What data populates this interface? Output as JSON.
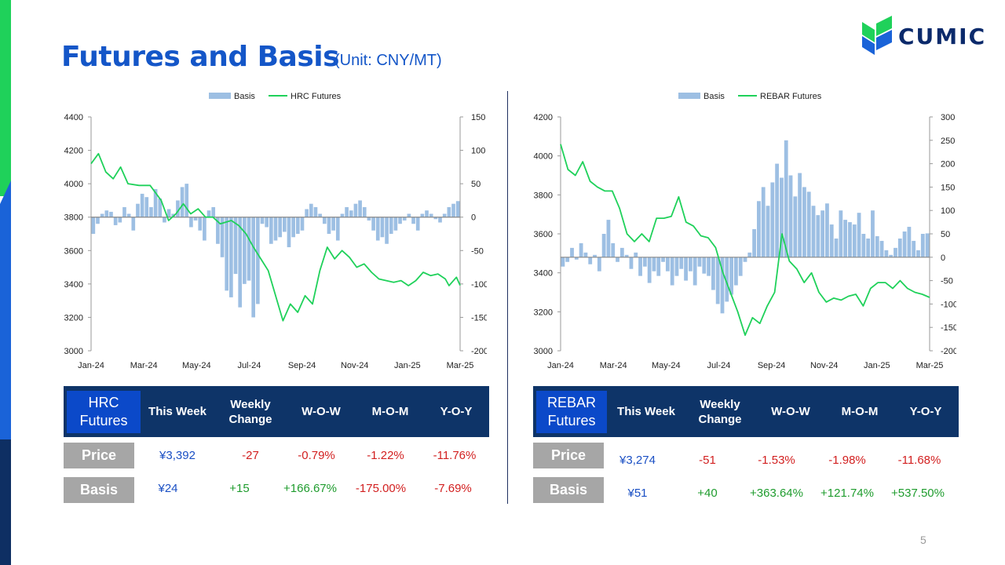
{
  "title": "Futures and Basis",
  "unit": "(Unit: CNY/MT)",
  "logo_text": "CUMIC",
  "page_number": "5",
  "colors": {
    "title": "#1456c8",
    "bar": "#9dbfe3",
    "line": "#1fd15a",
    "header": "#0e3468",
    "name_cell": "#0b49c9"
  },
  "chart_data": [
    {
      "type": "bar+line",
      "legend": [
        "Basis",
        "HRC Futures"
      ],
      "legend_position": "top",
      "x_ticks": [
        "Jan-24",
        "Mar-24",
        "May-24",
        "Jul-24",
        "Sep-24",
        "Nov-24",
        "Jan-25",
        "Mar-25"
      ],
      "y_left": {
        "ticks": [
          "4400",
          "4200",
          "4000",
          "3800",
          "3600",
          "3400",
          "3200",
          "3000"
        ],
        "range": [
          3000,
          4400
        ]
      },
      "y_right": {
        "ticks": [
          "150",
          "100",
          "50",
          "0",
          "-50",
          "-100",
          "-150",
          "-200"
        ],
        "range": [
          -200,
          150
        ]
      },
      "line_series": {
        "name": "HRC Futures",
        "points": [
          [
            0,
            4120
          ],
          [
            2,
            4180
          ],
          [
            4,
            4070
          ],
          [
            6,
            4030
          ],
          [
            8,
            4100
          ],
          [
            10,
            4000
          ],
          [
            13,
            3990
          ],
          [
            16,
            3990
          ],
          [
            19,
            3900
          ],
          [
            21,
            3780
          ],
          [
            23,
            3820
          ],
          [
            25,
            3880
          ],
          [
            27,
            3820
          ],
          [
            29,
            3850
          ],
          [
            31,
            3800
          ],
          [
            33,
            3800
          ],
          [
            35,
            3760
          ],
          [
            38,
            3780
          ],
          [
            40,
            3750
          ],
          [
            42,
            3700
          ],
          [
            44,
            3620
          ],
          [
            46,
            3550
          ],
          [
            48,
            3480
          ],
          [
            50,
            3330
          ],
          [
            52,
            3180
          ],
          [
            54,
            3280
          ],
          [
            56,
            3230
          ],
          [
            58,
            3330
          ],
          [
            60,
            3280
          ],
          [
            62,
            3480
          ],
          [
            64,
            3620
          ],
          [
            66,
            3550
          ],
          [
            68,
            3600
          ],
          [
            70,
            3560
          ],
          [
            72,
            3500
          ],
          [
            74,
            3520
          ],
          [
            76,
            3470
          ],
          [
            78,
            3430
          ],
          [
            80,
            3420
          ],
          [
            82,
            3410
          ],
          [
            84,
            3420
          ],
          [
            86,
            3390
          ],
          [
            88,
            3420
          ],
          [
            90,
            3470
          ],
          [
            92,
            3450
          ],
          [
            94,
            3460
          ],
          [
            96,
            3430
          ],
          [
            97,
            3390
          ],
          [
            99,
            3440
          ],
          [
            100,
            3392
          ]
        ]
      },
      "bar_series": {
        "name": "Basis",
        "values": [
          -25,
          -10,
          5,
          10,
          8,
          -12,
          -8,
          15,
          5,
          -20,
          20,
          35,
          30,
          15,
          42,
          28,
          -8,
          12,
          5,
          25,
          45,
          50,
          -15,
          -5,
          -20,
          -35,
          10,
          15,
          -40,
          -60,
          -110,
          -120,
          -85,
          -135,
          -100,
          -95,
          -150,
          -130,
          -10,
          -15,
          -40,
          -35,
          -30,
          -22,
          -45,
          -30,
          -25,
          -20,
          12,
          20,
          15,
          5,
          -10,
          -25,
          -20,
          -35,
          5,
          15,
          10,
          20,
          25,
          15,
          -5,
          -20,
          -35,
          -30,
          -40,
          -25,
          -20,
          -10,
          -5,
          5,
          -10,
          -20,
          5,
          10,
          5,
          -3,
          -8,
          5,
          15,
          20,
          24
        ]
      }
    },
    {
      "type": "bar+line",
      "legend": [
        "Basis",
        "REBAR Futures"
      ],
      "legend_position": "top",
      "x_ticks": [
        "Jan-24",
        "Mar-24",
        "May-24",
        "Jul-24",
        "Sep-24",
        "Nov-24",
        "Jan-25",
        "Mar-25"
      ],
      "y_left": {
        "ticks": [
          "4200",
          "4000",
          "3800",
          "3600",
          "3400",
          "3200",
          "3000"
        ],
        "range": [
          3000,
          4200
        ]
      },
      "y_right": {
        "ticks": [
          "300",
          "250",
          "200",
          "150",
          "100",
          "50",
          "0",
          "-50",
          "-100",
          "-150",
          "-200"
        ],
        "range": [
          -200,
          300
        ]
      },
      "line_series": {
        "name": "REBAR Futures",
        "points": [
          [
            0,
            4060
          ],
          [
            2,
            3930
          ],
          [
            4,
            3900
          ],
          [
            6,
            3970
          ],
          [
            8,
            3870
          ],
          [
            10,
            3840
          ],
          [
            12,
            3820
          ],
          [
            14,
            3820
          ],
          [
            16,
            3730
          ],
          [
            18,
            3600
          ],
          [
            20,
            3560
          ],
          [
            22,
            3600
          ],
          [
            24,
            3560
          ],
          [
            26,
            3680
          ],
          [
            28,
            3680
          ],
          [
            30,
            3690
          ],
          [
            32,
            3790
          ],
          [
            34,
            3660
          ],
          [
            36,
            3640
          ],
          [
            38,
            3590
          ],
          [
            40,
            3580
          ],
          [
            42,
            3530
          ],
          [
            44,
            3400
          ],
          [
            46,
            3300
          ],
          [
            48,
            3200
          ],
          [
            50,
            3080
          ],
          [
            52,
            3170
          ],
          [
            54,
            3140
          ],
          [
            56,
            3230
          ],
          [
            58,
            3300
          ],
          [
            60,
            3600
          ],
          [
            62,
            3460
          ],
          [
            64,
            3420
          ],
          [
            66,
            3350
          ],
          [
            68,
            3400
          ],
          [
            70,
            3300
          ],
          [
            72,
            3250
          ],
          [
            74,
            3270
          ],
          [
            76,
            3260
          ],
          [
            78,
            3280
          ],
          [
            80,
            3290
          ],
          [
            82,
            3230
          ],
          [
            84,
            3320
          ],
          [
            86,
            3350
          ],
          [
            88,
            3350
          ],
          [
            90,
            3320
          ],
          [
            92,
            3360
          ],
          [
            94,
            3320
          ],
          [
            96,
            3300
          ],
          [
            98,
            3290
          ],
          [
            100,
            3274
          ]
        ]
      },
      "bar_series": {
        "name": "Basis",
        "values": [
          -20,
          -10,
          20,
          -5,
          30,
          10,
          -15,
          5,
          -30,
          50,
          80,
          30,
          -10,
          20,
          5,
          -25,
          10,
          -40,
          -20,
          -55,
          -30,
          -40,
          -10,
          -30,
          -60,
          -40,
          -25,
          -50,
          -30,
          -60,
          -20,
          -35,
          -40,
          -70,
          -100,
          -120,
          -95,
          -80,
          -60,
          -40,
          -10,
          10,
          60,
          120,
          150,
          110,
          160,
          200,
          170,
          250,
          175,
          130,
          180,
          150,
          140,
          110,
          90,
          100,
          115,
          70,
          40,
          100,
          80,
          75,
          70,
          95,
          50,
          40,
          100,
          45,
          35,
          15,
          5,
          20,
          40,
          55,
          65,
          35,
          15,
          50,
          51
        ]
      }
    }
  ],
  "tables": [
    {
      "name": "HRC\nFutures",
      "headers": [
        "This Week",
        "Weekly\nChange",
        "W-O-W",
        "M-O-M",
        "Y-O-Y"
      ],
      "rows": [
        {
          "label": "Price",
          "this_week": "¥3,392",
          "weekly_change": "-27",
          "wow": "-0.79%",
          "mom": "-1.22%",
          "yoy": "-11.76%"
        },
        {
          "label": "Basis",
          "this_week": "¥24",
          "weekly_change": "+15",
          "wow": "+166.67%",
          "mom": "-175.00%",
          "yoy": "-7.69%"
        }
      ]
    },
    {
      "name": "REBAR\nFutures",
      "headers": [
        "This Week",
        "Weekly\nChange",
        "W-O-W",
        "M-O-M",
        "Y-O-Y"
      ],
      "rows": [
        {
          "label": "Price",
          "this_week": "¥3,274",
          "weekly_change": "-51",
          "wow": "-1.53%",
          "mom": "-1.98%",
          "yoy": "-11.68%"
        },
        {
          "label": "Basis",
          "this_week": "¥51",
          "weekly_change": "+40",
          "wow": "+363.64%",
          "mom": "+121.74%",
          "yoy": "+537.50%"
        }
      ]
    }
  ]
}
